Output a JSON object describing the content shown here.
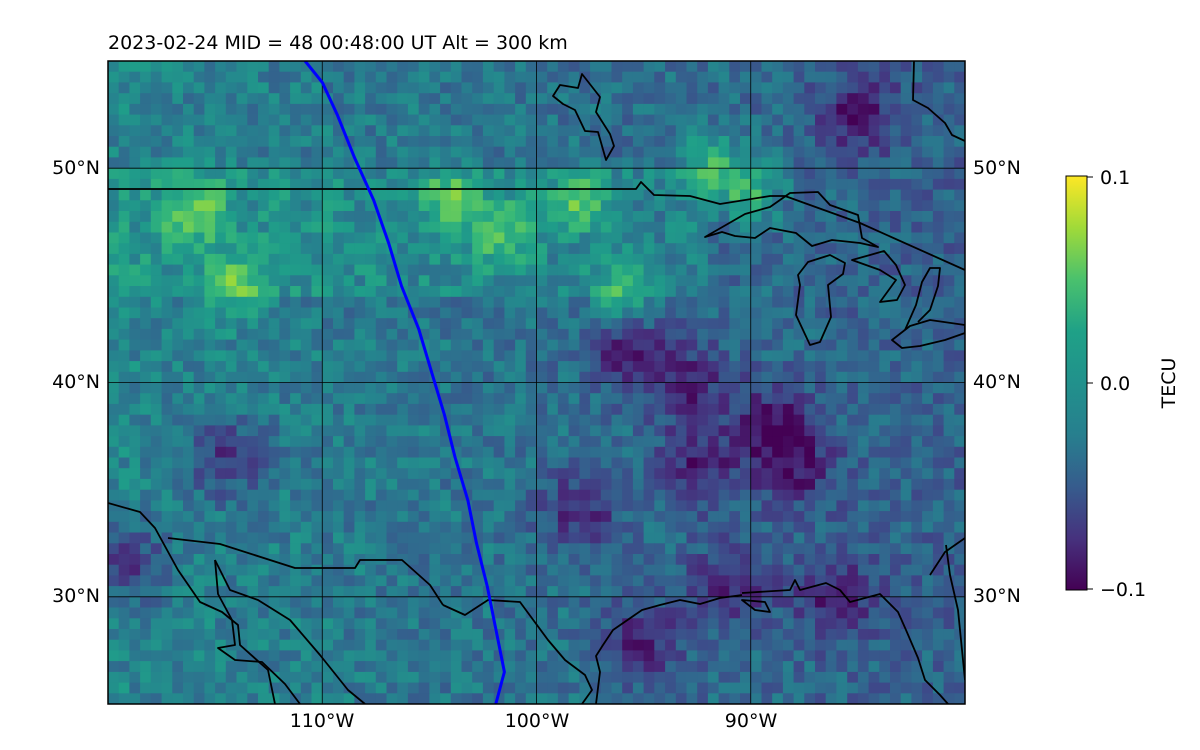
{
  "figure": {
    "title": "2023-02-24  MID =  48    00:48:00  UT  Alt = 300 km"
  },
  "map": {
    "lon_range": [
      -120,
      -80
    ],
    "lat_range": [
      25,
      55
    ],
    "latitude_labels": [
      "50°N",
      "40°N",
      "30°N"
    ],
    "longitude_labels": [
      "110°W",
      "100°W",
      "90°W"
    ],
    "gridlines": true,
    "colormap": "viridis",
    "coastline_color": "#000000",
    "satellite_track": {
      "color": "#0000ff",
      "points": [
        [
          -110.8,
          55.0
        ],
        [
          -110.0,
          54.0
        ],
        [
          -109.3,
          52.5
        ],
        [
          -108.5,
          50.5
        ],
        [
          -107.6,
          48.5
        ],
        [
          -106.9,
          46.5
        ],
        [
          -106.3,
          44.5
        ],
        [
          -105.5,
          42.5
        ],
        [
          -104.9,
          40.5
        ],
        [
          -104.3,
          38.5
        ],
        [
          -103.8,
          36.5
        ],
        [
          -103.2,
          34.5
        ],
        [
          -102.8,
          32.5
        ],
        [
          -102.3,
          30.5
        ],
        [
          -101.9,
          28.5
        ],
        [
          -101.5,
          26.5
        ],
        [
          -101.9,
          25.0
        ]
      ]
    },
    "blobs_high": [
      [
        -114.0,
        44.5
      ],
      [
        -96.0,
        44.0
      ],
      [
        -101.5,
        47.0
      ],
      [
        -92.0,
        50.0
      ],
      [
        -116.0,
        48.0
      ],
      [
        -104.0,
        48.5
      ],
      [
        -98.0,
        48.5
      ],
      [
        -90.0,
        49.0
      ]
    ],
    "blobs_low": [
      [
        -93.0,
        40.0
      ],
      [
        -89.0,
        38.0
      ],
      [
        -92.5,
        36.0
      ],
      [
        -98.0,
        34.0
      ],
      [
        -91.0,
        30.5
      ],
      [
        -86.0,
        30.0
      ],
      [
        -96.0,
        41.5
      ],
      [
        -88.0,
        36.0
      ],
      [
        -114.5,
        36.5
      ],
      [
        -119.0,
        31.5
      ],
      [
        -85.0,
        52.5
      ],
      [
        -95.0,
        28.0
      ]
    ]
  },
  "colorbar": {
    "label": "TECU",
    "tick_labels": [
      "0.1",
      "0.0",
      "−0.1"
    ]
  }
}
